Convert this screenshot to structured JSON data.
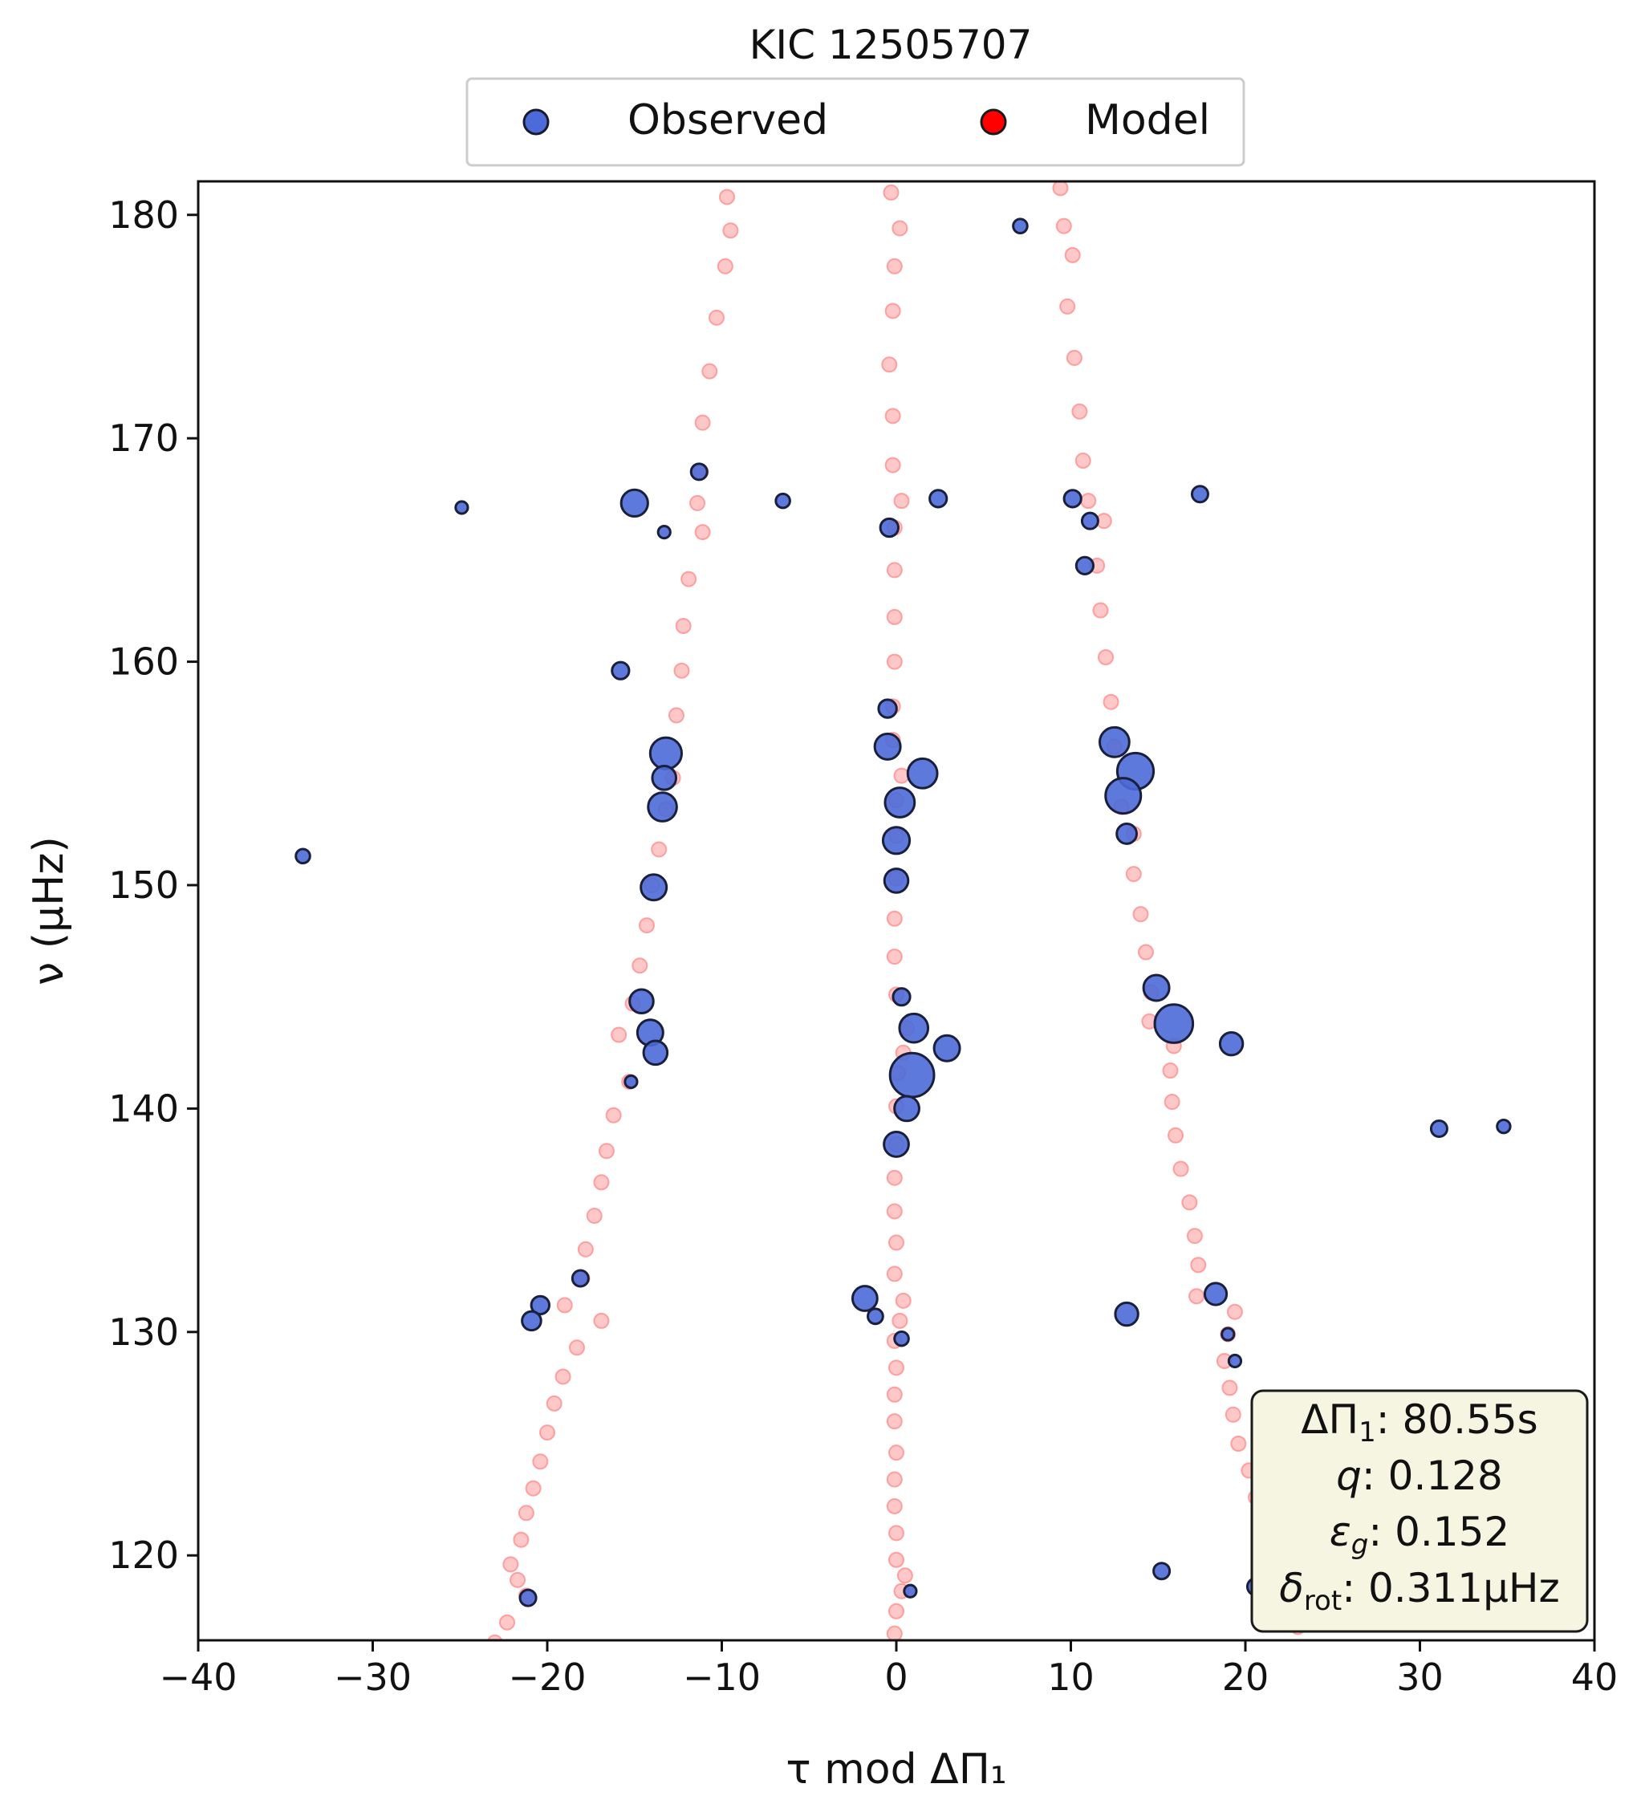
{
  "chart_data": {
    "type": "scatter",
    "title": "KIC 12505707",
    "xlabel": "τ mod ΔΠ₁",
    "ylabel": "ν (μHz)",
    "xlim": [
      -40,
      40
    ],
    "ylim": [
      116.2,
      181.5
    ],
    "xticks": [
      -40,
      -30,
      -20,
      -10,
      0,
      10,
      20,
      30,
      40
    ],
    "xtick_labels": [
      "−40",
      "−30",
      "−20",
      "−10",
      "0",
      "10",
      "20",
      "30",
      "40"
    ],
    "yticks": [
      120,
      130,
      140,
      150,
      160,
      170,
      180
    ],
    "ytick_labels": [
      "120",
      "130",
      "140",
      "150",
      "160",
      "170",
      "180"
    ],
    "legend": {
      "placement": "top-center, outside",
      "entries": [
        {
          "label": "Observed",
          "color": "#4c6ad8"
        },
        {
          "label": "Model",
          "color": "#ff0000"
        }
      ]
    },
    "annotation": {
      "placement": "bottom-right",
      "lines": {
        "dpi": {
          "sym": "ΔΠ",
          "sub": "1",
          "text": ": 80.55s"
        },
        "q": {
          "sym": "q",
          "text": ":  0.128"
        },
        "eps": {
          "sym": "ε",
          "sub": "g",
          "text": ": 0.152"
        },
        "drot": {
          "sym": "δ",
          "sub": "rot",
          "text": ": 0.311μHz"
        }
      }
    },
    "series": [
      {
        "name": "Model",
        "color": "#ff9a9a",
        "points": [
          [
            -9.7,
            180.8
          ],
          [
            -9.5,
            179.3
          ],
          [
            -9.8,
            177.7
          ],
          [
            -10.3,
            175.4
          ],
          [
            -10.7,
            173.0
          ],
          [
            -11.1,
            170.7
          ],
          [
            -11.2,
            168.5
          ],
          [
            -11.4,
            167.1
          ],
          [
            -11.1,
            165.8
          ],
          [
            -11.9,
            163.7
          ],
          [
            -12.2,
            161.6
          ],
          [
            -12.3,
            159.6
          ],
          [
            -12.6,
            157.6
          ],
          [
            -12.8,
            154.8
          ],
          [
            -13.2,
            153.4
          ],
          [
            -13.6,
            151.6
          ],
          [
            -14.0,
            150.0
          ],
          [
            -14.3,
            148.2
          ],
          [
            -14.7,
            146.4
          ],
          [
            -15.1,
            144.7
          ],
          [
            -15.9,
            143.3
          ],
          [
            -15.3,
            141.2
          ],
          [
            -16.2,
            139.7
          ],
          [
            -16.6,
            138.1
          ],
          [
            -16.9,
            136.7
          ],
          [
            -17.3,
            135.2
          ],
          [
            -17.8,
            133.7
          ],
          [
            -18.0,
            132.4
          ],
          [
            -19.0,
            131.2
          ],
          [
            -16.9,
            130.5
          ],
          [
            -18.3,
            129.3
          ],
          [
            -19.1,
            128.0
          ],
          [
            -19.6,
            126.8
          ],
          [
            -20.0,
            125.5
          ],
          [
            -20.4,
            124.2
          ],
          [
            -20.8,
            123.0
          ],
          [
            -21.2,
            121.9
          ],
          [
            -21.5,
            120.7
          ],
          [
            -22.1,
            119.6
          ],
          [
            -21.7,
            118.9
          ],
          [
            -21.2,
            118.2
          ],
          [
            -22.3,
            117.0
          ],
          [
            -23.0,
            116.1
          ],
          [
            -0.3,
            181.0
          ],
          [
            0.2,
            179.4
          ],
          [
            -0.1,
            177.7
          ],
          [
            -0.2,
            175.7
          ],
          [
            -0.4,
            173.3
          ],
          [
            -0.2,
            171.0
          ],
          [
            -0.2,
            168.8
          ],
          [
            0.3,
            167.2
          ],
          [
            -0.1,
            166.0
          ],
          [
            -0.1,
            164.1
          ],
          [
            -0.1,
            162.0
          ],
          [
            -0.1,
            160.0
          ],
          [
            -0.2,
            158.0
          ],
          [
            -0.2,
            156.5
          ],
          [
            0.3,
            154.9
          ],
          [
            0.0,
            153.8
          ],
          [
            0.0,
            152.2
          ],
          [
            0.0,
            150.3
          ],
          [
            -0.1,
            148.5
          ],
          [
            -0.1,
            146.8
          ],
          [
            0.0,
            145.1
          ],
          [
            0.6,
            143.6
          ],
          [
            0.4,
            142.5
          ],
          [
            0.1,
            141.6
          ],
          [
            0.0,
            140.1
          ],
          [
            0.0,
            138.4
          ],
          [
            -0.1,
            136.9
          ],
          [
            -0.1,
            135.4
          ],
          [
            0.0,
            134.0
          ],
          [
            -0.1,
            132.6
          ],
          [
            0.4,
            131.4
          ],
          [
            0.2,
            130.5
          ],
          [
            -0.1,
            129.6
          ],
          [
            0.0,
            128.4
          ],
          [
            -0.1,
            127.2
          ],
          [
            -0.1,
            126.0
          ],
          [
            0.0,
            124.6
          ],
          [
            -0.1,
            123.4
          ],
          [
            -0.1,
            122.2
          ],
          [
            0.0,
            121.0
          ],
          [
            0.0,
            119.8
          ],
          [
            0.5,
            119.1
          ],
          [
            0.3,
            118.4
          ],
          [
            0.0,
            117.5
          ],
          [
            -0.1,
            116.5
          ],
          [
            9.4,
            181.2
          ],
          [
            9.6,
            179.5
          ],
          [
            10.1,
            178.2
          ],
          [
            9.8,
            175.9
          ],
          [
            10.2,
            173.6
          ],
          [
            10.5,
            171.2
          ],
          [
            10.7,
            169.0
          ],
          [
            11.0,
            167.2
          ],
          [
            11.9,
            166.3
          ],
          [
            11.5,
            164.3
          ],
          [
            11.7,
            162.3
          ],
          [
            12.0,
            160.2
          ],
          [
            12.3,
            158.2
          ],
          [
            12.5,
            156.2
          ],
          [
            12.9,
            153.5
          ],
          [
            13.6,
            152.3
          ],
          [
            13.6,
            150.5
          ],
          [
            14.0,
            148.7
          ],
          [
            14.3,
            147.0
          ],
          [
            14.6,
            145.2
          ],
          [
            14.5,
            143.9
          ],
          [
            15.9,
            142.8
          ],
          [
            15.7,
            141.7
          ],
          [
            15.8,
            140.3
          ],
          [
            16.0,
            138.8
          ],
          [
            16.3,
            137.3
          ],
          [
            16.8,
            135.8
          ],
          [
            17.1,
            134.3
          ],
          [
            17.3,
            133.0
          ],
          [
            17.2,
            131.6
          ],
          [
            19.4,
            130.9
          ],
          [
            19.0,
            129.9
          ],
          [
            18.8,
            128.7
          ],
          [
            19.1,
            127.5
          ],
          [
            19.3,
            126.3
          ],
          [
            19.6,
            125.0
          ],
          [
            20.2,
            123.8
          ],
          [
            20.6,
            122.6
          ],
          [
            20.8,
            121.5
          ],
          [
            21.1,
            120.3
          ],
          [
            21.3,
            119.3
          ],
          [
            20.6,
            118.7
          ],
          [
            22.1,
            118.0
          ],
          [
            23.8,
            118.6
          ],
          [
            22.4,
            117.2
          ],
          [
            23.0,
            116.8
          ]
        ]
      },
      {
        "name": "Observed",
        "color": "#4c6ad8",
        "points": [
          [
            -24.9,
            166.9,
            0.6
          ],
          [
            -15.0,
            167.1,
            2.1
          ],
          [
            -13.3,
            165.8,
            0.6
          ],
          [
            -11.3,
            168.5,
            1.0
          ],
          [
            -6.5,
            167.2,
            0.8
          ],
          [
            -15.8,
            159.6,
            1.1
          ],
          [
            -13.2,
            155.9,
            2.6
          ],
          [
            -13.3,
            154.8,
            1.8
          ],
          [
            -13.4,
            153.5,
            2.3
          ],
          [
            -13.9,
            149.9,
            2.0
          ],
          [
            -14.6,
            144.8,
            1.8
          ],
          [
            -14.1,
            143.4,
            2.0
          ],
          [
            -13.8,
            142.5,
            1.8
          ],
          [
            -15.2,
            141.2,
            0.6
          ],
          [
            -34.0,
            151.3,
            0.8
          ],
          [
            -18.1,
            132.4,
            1.0
          ],
          [
            -20.4,
            131.2,
            1.2
          ],
          [
            -20.9,
            130.5,
            1.3
          ],
          [
            -21.1,
            118.1,
            1.0
          ],
          [
            -0.4,
            166.0,
            1.2
          ],
          [
            2.4,
            167.3,
            1.1
          ],
          [
            -0.5,
            157.9,
            1.2
          ],
          [
            -0.5,
            156.2,
            2.0
          ],
          [
            1.5,
            155.0,
            2.4
          ],
          [
            0.2,
            153.7,
            2.4
          ],
          [
            0.0,
            152.0,
            2.1
          ],
          [
            0.0,
            150.2,
            1.8
          ],
          [
            0.3,
            145.0,
            1.1
          ],
          [
            1.0,
            143.6,
            2.3
          ],
          [
            2.9,
            142.7,
            2.0
          ],
          [
            0.9,
            141.5,
            3.9
          ],
          [
            0.6,
            140.0,
            1.9
          ],
          [
            0.0,
            138.4,
            1.9
          ],
          [
            -1.8,
            131.5,
            1.9
          ],
          [
            -1.2,
            130.7,
            0.9
          ],
          [
            0.3,
            129.7,
            0.8
          ],
          [
            0.8,
            118.4,
            0.6
          ],
          [
            7.1,
            179.5,
            0.8
          ],
          [
            10.1,
            167.3,
            1.1
          ],
          [
            11.1,
            166.3,
            1.0
          ],
          [
            10.8,
            164.3,
            1.1
          ],
          [
            17.4,
            167.5,
            1.0
          ],
          [
            12.5,
            156.4,
            2.4
          ],
          [
            13.7,
            155.1,
            3.1
          ],
          [
            13.0,
            154.0,
            3.0
          ],
          [
            13.2,
            152.3,
            1.4
          ],
          [
            14.9,
            145.4,
            2.0
          ],
          [
            15.9,
            143.8,
            3.3
          ],
          [
            19.2,
            142.9,
            1.7
          ],
          [
            31.1,
            139.1,
            1.0
          ],
          [
            34.8,
            139.2,
            0.7
          ],
          [
            13.2,
            130.8,
            1.7
          ],
          [
            18.3,
            131.7,
            1.6
          ],
          [
            19.0,
            129.9,
            0.6
          ],
          [
            19.4,
            128.7,
            0.6
          ],
          [
            15.2,
            119.3,
            1.0
          ],
          [
            20.6,
            118.6,
            1.1
          ]
        ]
      }
    ]
  }
}
